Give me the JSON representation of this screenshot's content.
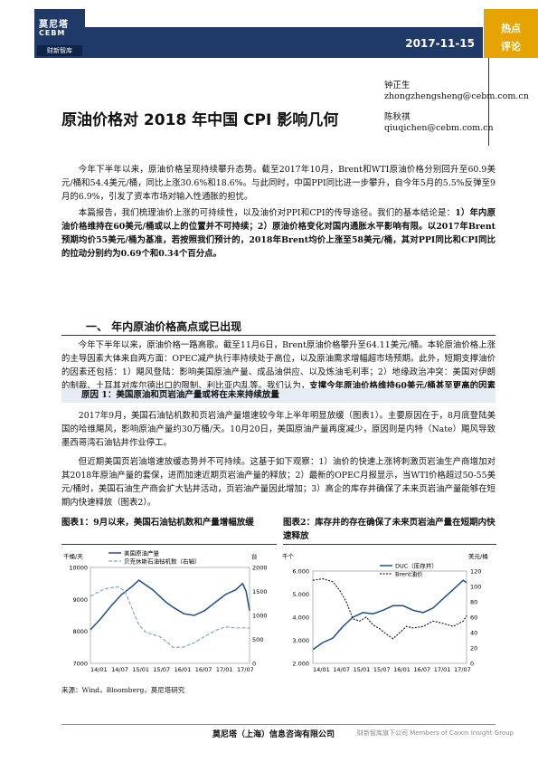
{
  "header": {
    "logo_cn": "莫尼塔",
    "logo_en": "CEBM",
    "logo_sub": "财新智库",
    "date": "2017-11-15",
    "badge_line1": "热点",
    "badge_line2": "评论"
  },
  "title": "原油价格对 2018 年中国 CPI 影响几何",
  "authors": [
    {
      "name": "钟正生",
      "email": "zhongzhengsheng@cebm.com.cn"
    },
    {
      "name": "陈秋祺",
      "email": "qiuqichen@cebm.com.cn"
    }
  ],
  "intro": {
    "p1": "今年下半年以来，原油价格呈现持续攀升态势。截至2017年10月，Brent和WTI原油价格分别回升至60.9美元/桶和54.4美元/桶，同比上涨30.6%和18.6%。与此同时，中国PPI同比进一步攀升，自今年5月的5.5%反弹至9月的6.9%，引发了资本市场对输入性通胀的担忧。",
    "p2_a": "本篇报告，我们梳理油价上涨的可持续性，以及油价对PPI和CPI的传导途径。我们的基本结论是：",
    "p2_b": "1）年内原油价格维持在60美元/桶或以上的位置并不可持续；2）原油价格变化对国内通胀水平影响有限。以2017年Brent预期均价55美元/桶为基准，若按照我们预计的，2018年Brent均价上涨至58美元/桶，其对PPI同比和CPI同比的拉动分别约为0.69个和0.34个百分点。"
  },
  "section1": {
    "title": "一、 年内原油价格高点或已出现",
    "p1_a": "今年下半年以来，原油价格一路高歌。截至11月6日，Brent原油价格攀升至64.11美元/桶。本轮原油价格上涨的主导因素大体来自两方面：OPEC减产执行率持续处于高位，以及原油需求增幅超市场预期。此外，短期支撑油价的因素还包括：1）飓风登陆：影响美国原油产量、成品油供应、以及炼油毛利率；2）地缘政治冲突：美国对伊朗的制裁、土耳其对库尔德出口的限制、利比亚内乱等。我们认为，",
    "p1_b": "支撑今年原油价格维持60美元/桶甚至更高的因素并不可持续。",
    "reason1": "原因 1：美国原油和页岩油产量或将在未来持续放量",
    "p2": "2017年9月，美国石油钻机数和页岩油产量增速较今年上半年明显放缓（图表1）。主要原因在于，8月底登陆美国的哈维飓风，影响原油产量约30万桶/天。10月20日，美国原油产量再度减少，原因则是内特（Nate）飓风导致墨西哥湾石油钻井作业停工。",
    "p3": "但近期美国页岩油增速放缓态势并不可持续。这基于如下观察：1）油价的快速上涨将刺激页岩油生产商增加对其2018年原油产量的套保，进而加速近期页岩油产量的释放；2）最新的OPEC月报显示，当WTI价格超过50-55美元/桶时，美国石油生产商会扩大钻井活动，页岩油产量因此增加；3）高企的库存井确保了未来页岩油产量能够在短期内快速释放（图表2）。"
  },
  "chart_data": [
    {
      "type": "line",
      "title": "图表1：9月以来，美国石油钻机数和产量增幅放缓",
      "ylabel_left": "千桶/天",
      "ylabel_right": "台",
      "ylim_left": [
        7000,
        10000
      ],
      "ylim_right": [
        0,
        2000
      ],
      "yticks_left": [
        "10000",
        "9000",
        "8000",
        "7000"
      ],
      "yticks_right": [
        "2000",
        "1500",
        "1000",
        "500",
        "0"
      ],
      "xticks": [
        "14/01",
        "14/07",
        "15/01",
        "15/07",
        "16/01",
        "16/07",
        "17/01",
        "17/07"
      ],
      "series": [
        {
          "name": "美国原油产量",
          "axis": "left",
          "color": "#1f4e8c",
          "style": "solid",
          "x": [
            0,
            3,
            6,
            9,
            12,
            14,
            16,
            18,
            20,
            22,
            24,
            27,
            30,
            33,
            36,
            39,
            42,
            44,
            45,
            46
          ],
          "values": [
            8050,
            8400,
            8800,
            9150,
            9400,
            9600,
            9450,
            9300,
            9100,
            8900,
            8750,
            8550,
            8500,
            8650,
            8900,
            9150,
            9300,
            9500,
            9250,
            8650
          ]
        },
        {
          "name": "贝克休斯石油钻机数（右轴）",
          "axis": "right",
          "color": "#7aa6d8",
          "style": "dashed",
          "x": [
            0,
            4,
            8,
            10,
            12,
            14,
            16,
            18,
            20,
            22,
            24,
            27,
            30,
            33,
            36,
            39,
            42,
            45,
            46
          ],
          "values": [
            1400,
            1550,
            1600,
            1500,
            1150,
            800,
            650,
            600,
            560,
            450,
            330,
            340,
            430,
            560,
            680,
            760,
            740,
            740,
            735
          ]
        }
      ]
    },
    {
      "type": "line",
      "title": "图表2：库存井的存在确保了未来页岩油产量在短期内快速释放",
      "ylabel_left": "千个",
      "ylabel_right": "美元/桶",
      "ylim_left": [
        2000,
        6000
      ],
      "ylim_right": [
        0,
        120
      ],
      "yticks_left": [
        "6.000",
        "5.000",
        "4.000",
        "3.000",
        "2.000"
      ],
      "yticks_right": [
        "120",
        "100",
        "80",
        "60",
        "40",
        "20",
        "0"
      ],
      "xticks": [
        "14/01",
        "14/07",
        "15/01",
        "15/07",
        "16/01",
        "16/07",
        "17/01",
        "17/07"
      ],
      "series": [
        {
          "name": "DUC（库存井）",
          "axis": "left",
          "color": "#1f4e8c",
          "style": "solid",
          "x": [
            0,
            3,
            6,
            9,
            12,
            15,
            18,
            21,
            24,
            27,
            30,
            33,
            36,
            39,
            42,
            45,
            46
          ],
          "values": [
            2600,
            2900,
            3100,
            3600,
            4000,
            4200,
            4150,
            4300,
            4500,
            4500,
            4300,
            4200,
            4400,
            4800,
            5200,
            5600,
            5500
          ]
        },
        {
          "name": "Brent油价",
          "axis": "right",
          "color": "#222222",
          "style": "dotted",
          "x": [
            0,
            3,
            6,
            8,
            10,
            12,
            14,
            16,
            18,
            20,
            22,
            24,
            26,
            28,
            30,
            33,
            36,
            39,
            42,
            45,
            46
          ],
          "values": [
            108,
            110,
            106,
            95,
            80,
            58,
            55,
            60,
            50,
            45,
            38,
            32,
            40,
            48,
            46,
            48,
            55,
            52,
            48,
            55,
            62
          ]
        }
      ]
    }
  ],
  "source": "来源：Wind，Bloomberg，莫尼塔研究",
  "footer": {
    "left": "莫尼塔（上海）信息咨询有限公司",
    "right": "财新智库旗下公司 Members of Caixin Insight Group"
  },
  "colors": {
    "brand": "#1f3a68",
    "accent": "#e6a400"
  }
}
